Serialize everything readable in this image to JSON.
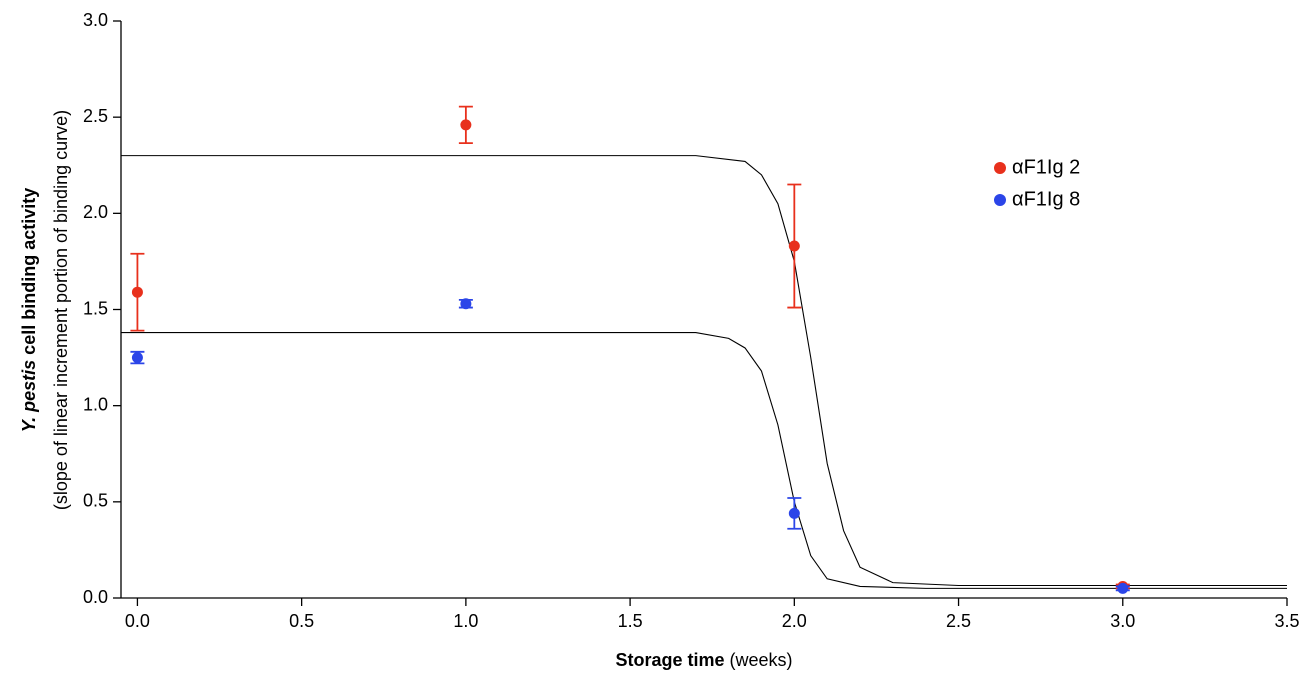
{
  "chart_data": {
    "type": "scatter",
    "ylabel": [
      "Y. pestis",
      "cell binding activity"
    ],
    "ylabel2": "(slope of linear increment portion of  binding curve)",
    "xlabel": [
      "Storage time",
      "(weeks)"
    ],
    "xlim": [
      -0.05,
      3.5
    ],
    "ylim": [
      0,
      3.0
    ],
    "xticks": [
      {
        "value": 0,
        "label": "0.0"
      },
      {
        "value": 0.5,
        "label": "0.5"
      },
      {
        "value": 1,
        "label": "1.0"
      },
      {
        "value": 1.5,
        "label": "1.5"
      },
      {
        "value": 2,
        "label": "2.0"
      },
      {
        "value": 2.5,
        "label": "2.5"
      },
      {
        "value": 3,
        "label": "3.0"
      },
      {
        "value": 3.5,
        "label": "3.5"
      }
    ],
    "yticks": [
      {
        "value": 0,
        "label": "0.0"
      },
      {
        "value": 0.5,
        "label": "0.5"
      },
      {
        "value": 1,
        "label": "1.0"
      },
      {
        "value": 1.5,
        "label": "1.5"
      },
      {
        "value": 2,
        "label": "2.0"
      },
      {
        "value": 2.5,
        "label": "2.5"
      },
      {
        "value": 3,
        "label": "3.0"
      }
    ],
    "legend": "upper right",
    "series": [
      {
        "name": "αF1Ig 2",
        "color": "#e8301c",
        "x": [
          0,
          1,
          2,
          3
        ],
        "values": [
          1.59,
          2.46,
          1.83,
          0.06
        ],
        "errors": [
          0.2,
          0.095,
          0.32,
          0.01
        ],
        "fit_x": [
          -0.05,
          1.7,
          1.85,
          1.9,
          1.95,
          2.0,
          2.05,
          2.1,
          2.15,
          2.2,
          2.3,
          2.5,
          3.5
        ],
        "fit_values": [
          2.3,
          2.3,
          2.27,
          2.2,
          2.05,
          1.75,
          1.25,
          0.7,
          0.35,
          0.16,
          0.08,
          0.065,
          0.065
        ]
      },
      {
        "name": "αF1Ig 8",
        "color": "#2b45e8",
        "x": [
          0,
          1,
          2,
          3
        ],
        "values": [
          1.25,
          1.53,
          0.44,
          0.05
        ],
        "errors": [
          0.03,
          0.02,
          0.08,
          0.01
        ],
        "fit_x": [
          -0.05,
          1.7,
          1.8,
          1.85,
          1.9,
          1.95,
          2.0,
          2.05,
          2.1,
          2.2,
          2.4,
          3.5
        ],
        "fit_values": [
          1.38,
          1.38,
          1.35,
          1.3,
          1.18,
          0.9,
          0.5,
          0.22,
          0.1,
          0.06,
          0.05,
          0.05
        ]
      }
    ]
  }
}
